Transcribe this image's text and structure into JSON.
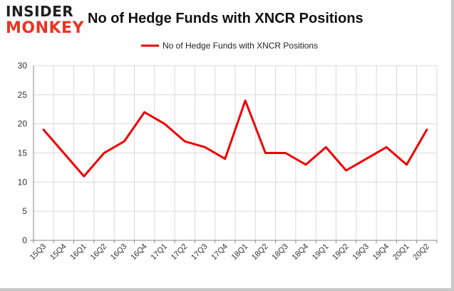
{
  "logo": {
    "line1": "INSIDER",
    "line2": "MONKEY"
  },
  "colors": {
    "series": "#ee0000",
    "grid": "#d9d9d9",
    "axis": "#888888",
    "logo_dark": "#1f1f1f",
    "logo_red": "#ea3424"
  },
  "chart_data": {
    "type": "line",
    "title": "No of Hedge Funds with XNCR Positions",
    "xlabel": "",
    "ylabel": "",
    "ylim": [
      0,
      30
    ],
    "yticks": [
      0,
      5,
      10,
      15,
      20,
      25,
      30
    ],
    "grid": true,
    "legend_position": "top-center",
    "categories": [
      "15Q3",
      "15Q4",
      "16Q1",
      "16Q2",
      "16Q3",
      "16Q4",
      "17Q1",
      "17Q2",
      "17Q3",
      "17Q4",
      "18Q1",
      "18Q2",
      "18Q3",
      "18Q4",
      "19Q1",
      "19Q2",
      "19Q3",
      "19Q4",
      "20Q1",
      "20Q2"
    ],
    "series": [
      {
        "name": "No of Hedge Funds with XNCR Positions",
        "values": [
          19,
          15,
          11,
          15,
          17,
          22,
          20,
          17,
          16,
          14,
          24,
          15,
          15,
          13,
          16,
          12,
          14,
          16,
          13,
          19
        ]
      }
    ]
  }
}
